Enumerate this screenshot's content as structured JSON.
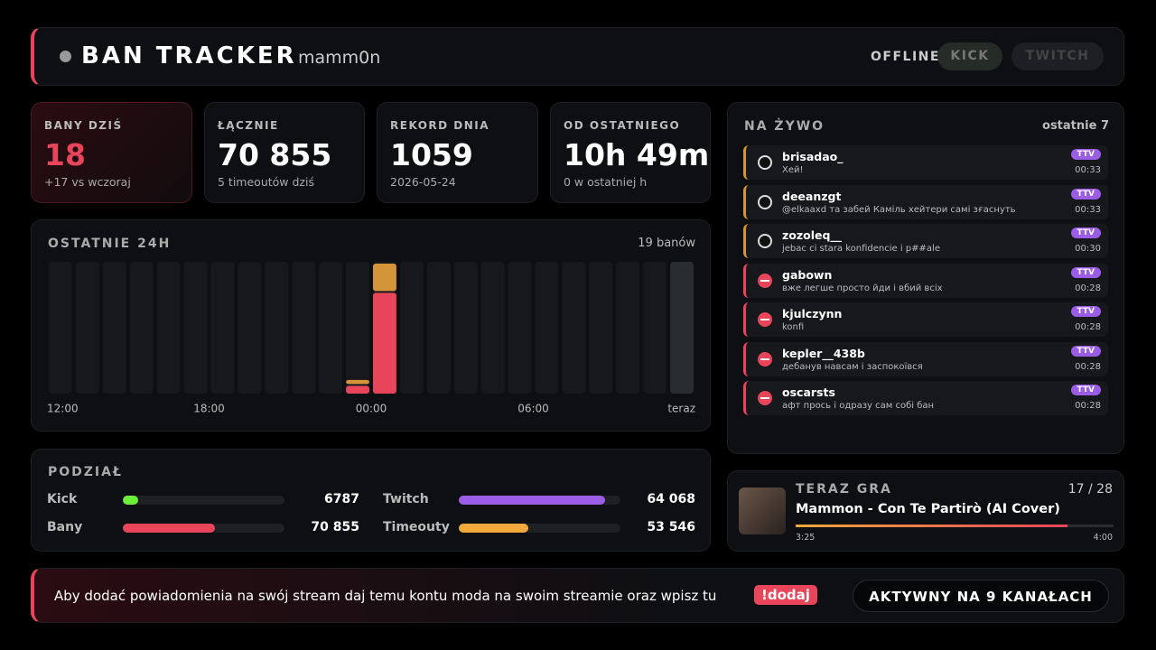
{
  "header": {
    "title": "BAN TRACKER",
    "user": "mamm0n",
    "status": "OFFLINE",
    "buttons": [
      "KICK",
      "TWITCH"
    ]
  },
  "stats": [
    {
      "label": "BANY DZIŚ",
      "value": "18",
      "sub": "+17 vs wczoraj"
    },
    {
      "label": "ŁĄCZNIE",
      "value": "70 855",
      "sub": "5 timeoutów dziś"
    },
    {
      "label": "REKORD DNIA",
      "value": "1059",
      "sub": "2026-05-24"
    },
    {
      "label": "OD OSTATNIEGO",
      "value": "10h 49m",
      "sub": "0 w ostatniej h"
    }
  ],
  "hourly": {
    "title": "OSTATNIE 24H",
    "total": "19 banów",
    "x_labels": [
      "12:00",
      "18:00",
      "00:00",
      "06:00",
      "teraz"
    ],
    "series": [
      {
        "color": "#e8455a",
        "values": [
          0,
          0,
          0,
          0,
          0,
          0,
          0,
          0,
          0,
          0,
          0,
          1,
          13,
          0,
          0,
          0,
          0,
          0,
          0,
          0,
          0,
          0,
          0,
          0
        ]
      },
      {
        "color": "#d4953a",
        "values": [
          0,
          0,
          0,
          0,
          0,
          0,
          0,
          0,
          0,
          0,
          0,
          1,
          4,
          0,
          0,
          0,
          0,
          0,
          0,
          0,
          0,
          0,
          0,
          0
        ]
      }
    ]
  },
  "split": {
    "title": "PODZIAŁ",
    "rows": [
      [
        {
          "label": "Kick",
          "value": 6787,
          "color": "#6cf03a"
        },
        {
          "label": "Twitch",
          "value": 64068,
          "value_label": "64 068",
          "color": "#9b5de5"
        }
      ],
      [
        {
          "label": "Bany",
          "value": 70855,
          "value_label": "70 855",
          "color": "#e8455a"
        },
        {
          "label": "Timeouty",
          "value": 53546,
          "value_label": "53 546",
          "color": "#f0a93a"
        }
      ]
    ]
  },
  "live": {
    "title": "NA ŻYWO",
    "sub": "ostatnie 7",
    "items": [
      {
        "kind": "timeout",
        "name": "brisadao_",
        "msg": "Хей!",
        "badge": "TTV",
        "time": "00:33"
      },
      {
        "kind": "timeout",
        "name": "deeanzgt",
        "msg": "@elkaaxd та забей Каміль хейтери самі зғаснуть",
        "badge": "TTV",
        "time": "00:33"
      },
      {
        "kind": "timeout",
        "name": "zozoleq__",
        "msg": "jebac ci stara konfidencie i p##ale",
        "badge": "TTV",
        "time": "00:30"
      },
      {
        "kind": "ban",
        "name": "gabown",
        "msg": "вже легше просто йди і вбий всіх",
        "badge": "TTV",
        "time": "00:28"
      },
      {
        "kind": "ban",
        "name": "kjulczynn",
        "msg": "konfi",
        "badge": "TTV",
        "time": "00:28"
      },
      {
        "kind": "ban",
        "name": "kepler__438b",
        "msg": "дебанув навсам і заспокоївся",
        "badge": "TTV",
        "time": "00:28"
      },
      {
        "kind": "ban",
        "name": "oscarsts",
        "msg": "афт прось і одразу сам собі бан",
        "badge": "TTV",
        "time": "00:28"
      }
    ]
  },
  "now": {
    "title": "TERAZ GRA",
    "pos": "17 / 28",
    "song": "Mammon - Con Te Partirò (AI Cover)",
    "elapsed": "3:25",
    "length": "4:00"
  },
  "footer": {
    "text": "Aby dodać powiadomienia na swój stream daj temu kontu moda na swoim streamie oraz wpisz tu",
    "command": "!dodaj",
    "active": "AKTYWNY NA 9 KANAŁACH"
  }
}
